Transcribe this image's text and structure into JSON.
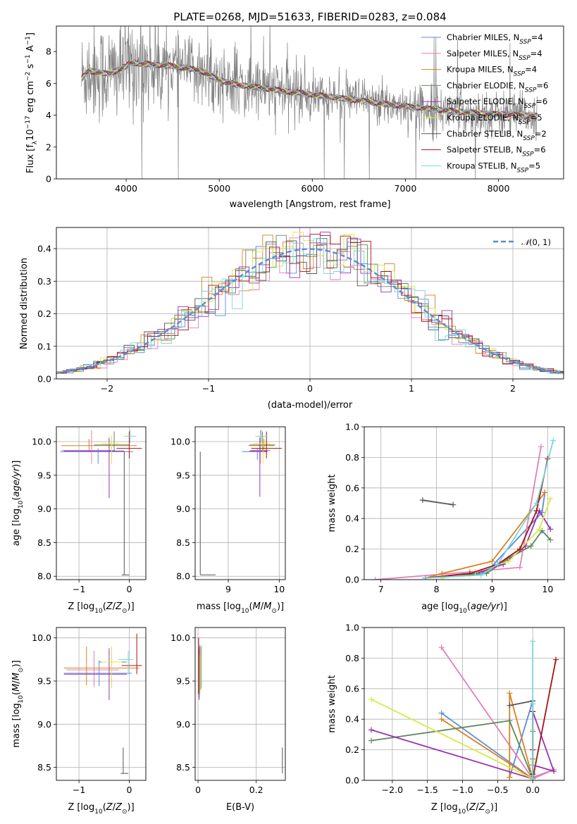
{
  "figure_title": "PLATE=0268, MJD=51633, FIBERID=0283, z=0.084",
  "series_names": [
    "Chabrier MILES, N_SSP=4",
    "Salpeter MILES, N_SSP=4",
    "Kroupa MILES, N_SSP=4",
    "Chabrier ELODIE, N_SSP=6",
    "Salpeter ELODIE, N_SSP=6",
    "Kroupa ELODIE, N_SSP=5",
    "Chabrier STELIB, N_SSP=2",
    "Salpeter STELIB, N_SSP=6",
    "Kroupa STELIB, N_SSP=5"
  ],
  "series_colors": [
    "#5b8bd6",
    "#e27fb8",
    "#d97f20",
    "#5d8a5f",
    "#9b30b4",
    "#d7e84a",
    "#555555",
    "#a41414",
    "#76d6dc"
  ],
  "chart_data": [
    {
      "id": "spectrum",
      "type": "line",
      "title": "PLATE=0268, MJD=51633, FIBERID=0283, z=0.084",
      "xlabel": "wavelength [Angstrom, rest frame]",
      "ylabel": "Flux [f_λ 10^-17 erg cm^-2 s^-1 A^-1]",
      "xlim": [
        3250,
        8700
      ],
      "ylim": [
        0,
        9.6
      ],
      "xticks": [
        4000,
        5000,
        6000,
        7000,
        8000
      ],
      "yticks": [
        0,
        2,
        4,
        6,
        8
      ],
      "data_color": "#808080",
      "continuum_anchors": {
        "x": [
          3520,
          3600,
          3800,
          3950,
          4050,
          4250,
          4500,
          4800,
          5000,
          5200,
          5600,
          6000,
          6400,
          6800,
          7200,
          7600,
          8000,
          8400
        ],
        "y": [
          6.3,
          6.8,
          6.6,
          6.9,
          7.3,
          7.2,
          7.1,
          6.8,
          6.2,
          5.9,
          5.6,
          5.3,
          5.0,
          4.7,
          4.45,
          4.2,
          4.05,
          3.95
        ]
      },
      "legend": [
        "Chabrier MILES, N_SSP=4",
        "Salpeter MILES, N_SSP=4",
        "Kroupa MILES, N_SSP=4",
        "Chabrier ELODIE, N_SSP=6",
        "Salpeter ELODIE, N_SSP=6",
        "Kroupa ELODIE, N_SSP=5",
        "Chabrier STELIB, N_SSP=2",
        "Salpeter STELIB, N_SSP=6",
        "Kroupa STELIB, N_SSP=5"
      ],
      "legend_position": "top-right"
    },
    {
      "id": "residuals",
      "type": "line",
      "xlabel": "(data-model)/error",
      "ylabel": "Normed distribution",
      "xlim": [
        -2.5,
        2.5
      ],
      "ylim": [
        0,
        0.465
      ],
      "xticks": [
        -2,
        -1,
        0,
        1,
        2
      ],
      "yticks": [
        0.0,
        0.1,
        0.2,
        0.3,
        0.4
      ],
      "reference_curve": {
        "name": "𝒩(0,1)",
        "mean": 0,
        "sigma": 1,
        "color": "#5b8bd6",
        "style": "dashed"
      },
      "histograms": "step histograms, one per model series, scattered around the N(0,1) curve",
      "legend_position": "top-right"
    },
    {
      "id": "age_vs_Z",
      "type": "scatter",
      "xlabel": "Z [log10(Z/Z⊙)]",
      "ylabel": "age  [log10(age/yr)]",
      "xlim": [
        -1.45,
        0.33
      ],
      "ylim": [
        7.95,
        10.22
      ],
      "xticks": [
        -1,
        0
      ],
      "yticks": [
        8.0,
        8.5,
        9.0,
        9.5,
        10.0
      ],
      "points": [
        {
          "x": -0.62,
          "y": 9.85,
          "xerr": [
            0.75,
            0.7
          ],
          "yerr": [
            0.18,
            0.05
          ]
        },
        {
          "x": -0.75,
          "y": 9.87,
          "xerr": [
            0.6,
            0.45
          ],
          "yerr": [
            0.2,
            0.3
          ]
        },
        {
          "x": -0.8,
          "y": 9.94,
          "xerr": [
            0.55,
            0.95
          ],
          "yerr": [
            0.1,
            0.1
          ]
        },
        {
          "x": -0.3,
          "y": 9.95,
          "xerr": [
            0.4,
            0.3
          ],
          "yerr": [
            0.1,
            0.2
          ]
        },
        {
          "x": -0.4,
          "y": 9.86,
          "xerr": [
            0.9,
            0.3
          ],
          "yerr": [
            0.7,
            0.2
          ]
        },
        {
          "x": -0.35,
          "y": 9.97,
          "xerr": [
            0.2,
            0.15
          ],
          "yerr": [
            0.3,
            0.12
          ]
        },
        {
          "x": -0.1,
          "y": 8.02,
          "xerr": [
            0.05,
            0.1
          ],
          "yerr": [
            0.0,
            1.83
          ]
        },
        {
          "x": 0.0,
          "y": 9.9,
          "xerr": [
            0.25,
            0.25
          ],
          "yerr": [
            0.15,
            0.25
          ]
        },
        {
          "x": 0.02,
          "y": 10.08,
          "xerr": [
            0.12,
            0.12
          ],
          "yerr": [
            0.1,
            0.1
          ]
        }
      ]
    },
    {
      "id": "age_vs_mass",
      "type": "scatter",
      "xlabel": "mass [log10(M/M⊙)]",
      "ylabel": "",
      "xlim": [
        8.35,
        10.12
      ],
      "ylim": [
        7.95,
        10.22
      ],
      "xticks": [
        9,
        10
      ],
      "yticks": [
        8.0,
        8.5,
        9.0,
        9.5,
        10.0
      ],
      "points": [
        {
          "x": 9.57,
          "y": 9.85,
          "xerr": [
            0.3,
            0.2
          ],
          "yerr": [
            0.12,
            0.05
          ]
        },
        {
          "x": 9.63,
          "y": 9.87,
          "xerr": [
            0.2,
            0.2
          ],
          "yerr": [
            0.2,
            0.3
          ]
        },
        {
          "x": 9.7,
          "y": 9.94,
          "xerr": [
            0.3,
            0.2
          ],
          "yerr": [
            0.1,
            0.1
          ]
        },
        {
          "x": 9.67,
          "y": 9.95,
          "xerr": [
            0.25,
            0.25
          ],
          "yerr": [
            0.1,
            0.2
          ]
        },
        {
          "x": 9.62,
          "y": 9.86,
          "xerr": [
            0.2,
            0.15
          ],
          "yerr": [
            0.68,
            0.2
          ]
        },
        {
          "x": 9.68,
          "y": 9.97,
          "xerr": [
            0.2,
            0.15
          ],
          "yerr": [
            0.3,
            0.12
          ]
        },
        {
          "x": 8.45,
          "y": 8.02,
          "xerr": [
            0.0,
            0.3
          ],
          "yerr": [
            0.0,
            1.83
          ]
        },
        {
          "x": 9.75,
          "y": 9.9,
          "xerr": [
            0.3,
            0.3
          ],
          "yerr": [
            0.15,
            0.25
          ]
        },
        {
          "x": 9.65,
          "y": 10.08,
          "xerr": [
            0.12,
            0.12
          ],
          "yerr": [
            0.1,
            0.1
          ]
        }
      ]
    },
    {
      "id": "massweight_vs_age",
      "type": "line",
      "xlabel": "age  [log10(age/yr)]",
      "ylabel": "mass weight",
      "xlim": [
        6.7,
        10.3
      ],
      "ylim": [
        0,
        1.0
      ],
      "xticks": [
        7,
        8,
        9,
        10
      ],
      "yticks": [
        0.0,
        0.2,
        0.4,
        0.6,
        0.8,
        1.0
      ],
      "series": [
        {
          "name": "Chabrier MILES, N_SSP=4",
          "x": [
            7.8,
            8.9,
            9.9,
            9.95
          ],
          "y": [
            0.01,
            0.05,
            0.44,
            0.57
          ]
        },
        {
          "name": "Salpeter MILES, N_SSP=4",
          "x": [
            6.9,
            8.6,
            9.5,
            9.88
          ],
          "y": [
            0.0,
            0.05,
            0.08,
            0.87
          ]
        },
        {
          "name": "Kroupa MILES, N_SSP=4",
          "x": [
            7.8,
            8.1,
            9.0,
            9.95
          ],
          "y": [
            0.01,
            0.04,
            0.12,
            0.57
          ]
        },
        {
          "name": "Chabrier ELODIE, N_SSP=6",
          "x": [
            7.8,
            8.9,
            9.3,
            9.7,
            9.9,
            10.05
          ],
          "y": [
            0.01,
            0.04,
            0.14,
            0.22,
            0.32,
            0.26
          ]
        },
        {
          "name": "Salpeter ELODIE, N_SSP=6",
          "x": [
            7.8,
            8.8,
            9.2,
            9.6,
            9.85,
            10.05
          ],
          "y": [
            0.01,
            0.05,
            0.1,
            0.22,
            0.45,
            0.33
          ]
        },
        {
          "name": "Kroupa ELODIE, N_SSP=5",
          "x": [
            8.1,
            8.7,
            9.3,
            9.85,
            10.05
          ],
          "y": [
            0.01,
            0.05,
            0.12,
            0.33,
            0.53
          ]
        },
        {
          "name": "Chabrier STELIB, N_SSP=2",
          "x": [
            7.75,
            8.3
          ],
          "y": [
            0.52,
            0.49
          ]
        },
        {
          "name": "Salpeter STELIB, N_SSP=6",
          "x": [
            7.8,
            8.6,
            9.1,
            9.5,
            9.8,
            10.0
          ],
          "y": [
            0.01,
            0.04,
            0.1,
            0.2,
            0.45,
            0.79
          ]
        },
        {
          "name": "Kroupa STELIB, N_SSP=5",
          "x": [
            7.8,
            8.8,
            9.1,
            9.8,
            10.1
          ],
          "y": [
            0.01,
            0.03,
            0.1,
            0.5,
            0.91
          ]
        }
      ]
    },
    {
      "id": "mass_vs_Z",
      "type": "scatter",
      "xlabel": "Z [log10(Z/Z⊙)]",
      "ylabel": "mass [log10(M/M⊙)]",
      "xlim": [
        -1.45,
        0.33
      ],
      "ylim": [
        8.35,
        10.12
      ],
      "xticks": [
        -1,
        0
      ],
      "yticks": [
        8.5,
        9.0,
        9.5,
        10.0
      ],
      "points": [
        {
          "x": -0.6,
          "y": 9.59,
          "xerr": [
            0.7,
            0.65
          ],
          "yerr": [
            0.15,
            0.15
          ]
        },
        {
          "x": -0.7,
          "y": 9.63,
          "xerr": [
            0.55,
            0.5
          ],
          "yerr": [
            0.2,
            0.22
          ]
        },
        {
          "x": -0.85,
          "y": 9.65,
          "xerr": [
            0.45,
            1.05
          ],
          "yerr": [
            0.2,
            0.25
          ]
        },
        {
          "x": -0.35,
          "y": 9.72,
          "xerr": [
            0.25,
            0.3
          ],
          "yerr": [
            0.3,
            0.15
          ]
        },
        {
          "x": -0.4,
          "y": 9.58,
          "xerr": [
            0.9,
            0.35
          ],
          "yerr": [
            0.3,
            0.3
          ]
        },
        {
          "x": -0.35,
          "y": 9.72,
          "xerr": [
            0.2,
            0.2
          ],
          "yerr": [
            0.3,
            0.18
          ]
        },
        {
          "x": -0.12,
          "y": 8.43,
          "xerr": [
            0.05,
            0.1
          ],
          "yerr": [
            0.0,
            0.3
          ]
        },
        {
          "x": 0.15,
          "y": 9.68,
          "xerr": [
            0.3,
            0.1
          ],
          "yerr": [
            0.1,
            0.37
          ]
        },
        {
          "x": -0.02,
          "y": 9.75,
          "xerr": [
            0.2,
            0.1
          ],
          "yerr": [
            0.15,
            0.1
          ]
        }
      ]
    },
    {
      "id": "mass_vs_ebv",
      "type": "scatter",
      "xlabel": "E(B-V)",
      "ylabel": "",
      "xlim": [
        -0.01,
        0.3
      ],
      "ylim": [
        8.35,
        10.12
      ],
      "xticks": [
        0.0,
        0.2
      ],
      "yticks": [
        8.5,
        9.0,
        9.5,
        10.0
      ],
      "points": [
        {
          "x": 0.003,
          "y": 9.59,
          "yerr": [
            0.2,
            0.3
          ]
        },
        {
          "x": 0.006,
          "y": 9.62,
          "yerr": [
            0.25,
            0.3
          ]
        },
        {
          "x": 0.009,
          "y": 9.6,
          "yerr": [
            0.2,
            0.3
          ]
        },
        {
          "x": 0.004,
          "y": 9.58,
          "yerr": [
            0.3,
            0.3
          ]
        },
        {
          "x": 0.003,
          "y": 9.6,
          "yerr": [
            0.3,
            0.3
          ]
        },
        {
          "x": 0.007,
          "y": 9.6,
          "yerr": [
            0.25,
            0.2
          ]
        },
        {
          "x": 0.29,
          "y": 8.43,
          "yerr": [
            0.0,
            0.3
          ]
        },
        {
          "x": 0.002,
          "y": 9.65,
          "yerr": [
            0.3,
            0.35
          ]
        },
        {
          "x": 0.012,
          "y": 9.62,
          "yerr": [
            0.2,
            0.3
          ]
        }
      ]
    },
    {
      "id": "massweight_vs_Z",
      "type": "line",
      "xlabel": "Z [log10(Z/Z⊙)]",
      "ylabel": "mass weight",
      "xlim": [
        -2.4,
        0.45
      ],
      "ylim": [
        0,
        1.0
      ],
      "xticks": [
        -2.0,
        -1.5,
        -1.0,
        -0.5,
        0.0
      ],
      "yticks": [
        0.0,
        0.2,
        0.4,
        0.6,
        0.8,
        1.0
      ],
      "series": [
        {
          "name": "Chabrier MILES, N_SSP=4",
          "x": [
            -1.3,
            0.0,
            0.0,
            -0.33
          ],
          "y": [
            0.44,
            0.01,
            0.52,
            0.02
          ]
        },
        {
          "name": "Salpeter MILES, N_SSP=4",
          "x": [
            -1.3,
            0.0,
            0.3,
            0.0
          ],
          "y": [
            0.87,
            0.01,
            0.07,
            0.02
          ]
        },
        {
          "name": "Kroupa MILES, N_SSP=4",
          "x": [
            -1.3,
            0.0,
            -0.33,
            -0.33
          ],
          "y": [
            0.4,
            0.01,
            0.57,
            0.02
          ]
        },
        {
          "name": "Chabrier ELODIE, N_SSP=6",
          "x": [
            -2.3,
            -0.33,
            0.0,
            0.0,
            0.0,
            0.0
          ],
          "y": [
            0.26,
            0.39,
            0.01,
            0.04,
            0.14,
            0.32
          ]
        },
        {
          "name": "Salpeter ELODIE, N_SSP=6",
          "x": [
            -2.3,
            0.0,
            0.0,
            0.0,
            0.3,
            0.0
          ],
          "y": [
            0.33,
            0.01,
            0.05,
            0.45,
            0.06,
            0.1
          ]
        },
        {
          "name": "Kroupa ELODIE, N_SSP=5",
          "x": [
            -2.3,
            0.0,
            0.0,
            0.0,
            0.0
          ],
          "y": [
            0.53,
            0.01,
            0.05,
            0.12,
            0.33
          ]
        },
        {
          "name": "Chabrier STELIB, N_SSP=2",
          "x": [
            -0.33,
            0.0
          ],
          "y": [
            0.49,
            0.52
          ]
        },
        {
          "name": "Salpeter STELIB, N_SSP=6",
          "x": [
            0.33,
            0.0,
            0.0,
            0.0,
            0.0,
            0.0
          ],
          "y": [
            0.79,
            0.01,
            0.04,
            0.1,
            0.2,
            0.45
          ]
        },
        {
          "name": "Kroupa STELIB, N_SSP=5",
          "x": [
            0.0,
            0.0,
            0.0,
            0.0,
            0.0
          ],
          "y": [
            0.91,
            0.01,
            0.03,
            0.1,
            0.5
          ]
        }
      ]
    }
  ]
}
